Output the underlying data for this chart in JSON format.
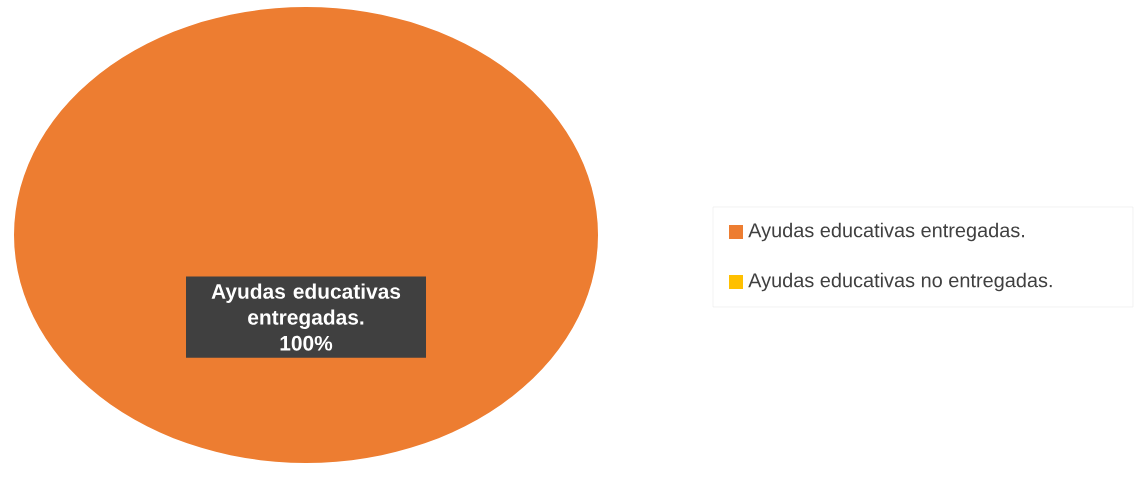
{
  "chart_data": {
    "type": "pie",
    "categories": [
      "Ayudas educativas entregadas.",
      "Ayudas educativas no entregadas."
    ],
    "values": [
      100,
      0
    ],
    "colors": [
      "#ed7d31",
      "#ffc000"
    ],
    "value_labels": [
      "100%",
      null
    ],
    "legend": "right"
  }
}
